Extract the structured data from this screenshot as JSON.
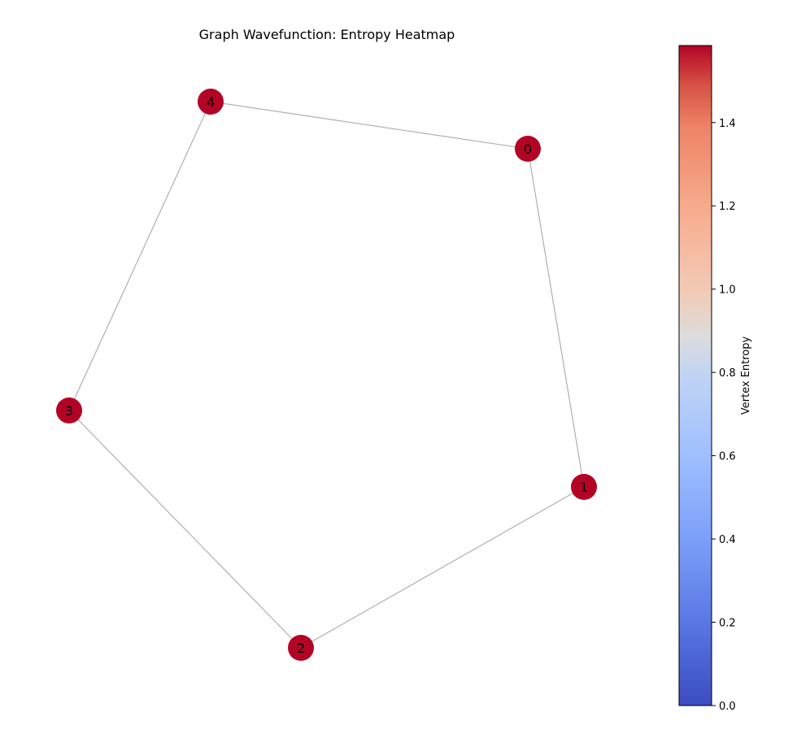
{
  "chart_data": {
    "type": "graph",
    "title": "Graph Wavefunction: Entropy Heatmap",
    "nodes": [
      {
        "id": "0",
        "entropy": 1.585
      },
      {
        "id": "1",
        "entropy": 1.585
      },
      {
        "id": "2",
        "entropy": 1.585
      },
      {
        "id": "3",
        "entropy": 1.585
      },
      {
        "id": "4",
        "entropy": 1.585
      }
    ],
    "edges": [
      [
        "0",
        "1"
      ],
      [
        "1",
        "2"
      ],
      [
        "2",
        "3"
      ],
      [
        "3",
        "4"
      ],
      [
        "4",
        "0"
      ]
    ],
    "colorbar": {
      "label": "Vertex Entropy",
      "colormap": "coolwarm",
      "range": [
        0.0,
        1.585
      ],
      "ticks": [
        {
          "value": 0.0,
          "label": "0.0"
        },
        {
          "value": 0.2,
          "label": "0.2"
        },
        {
          "value": 0.4,
          "label": "0.4"
        },
        {
          "value": 0.6,
          "label": "0.6"
        },
        {
          "value": 0.8,
          "label": "0.8"
        },
        {
          "value": 1.0,
          "label": "1.0"
        },
        {
          "value": 1.2,
          "label": "1.2"
        },
        {
          "value": 1.4,
          "label": "1.4"
        }
      ],
      "color_low": "#3b4cc0",
      "color_mid": "#dddddd",
      "color_high": "#b40426"
    },
    "node_color": "#b40426",
    "edge_color": "#b0b0b0"
  }
}
